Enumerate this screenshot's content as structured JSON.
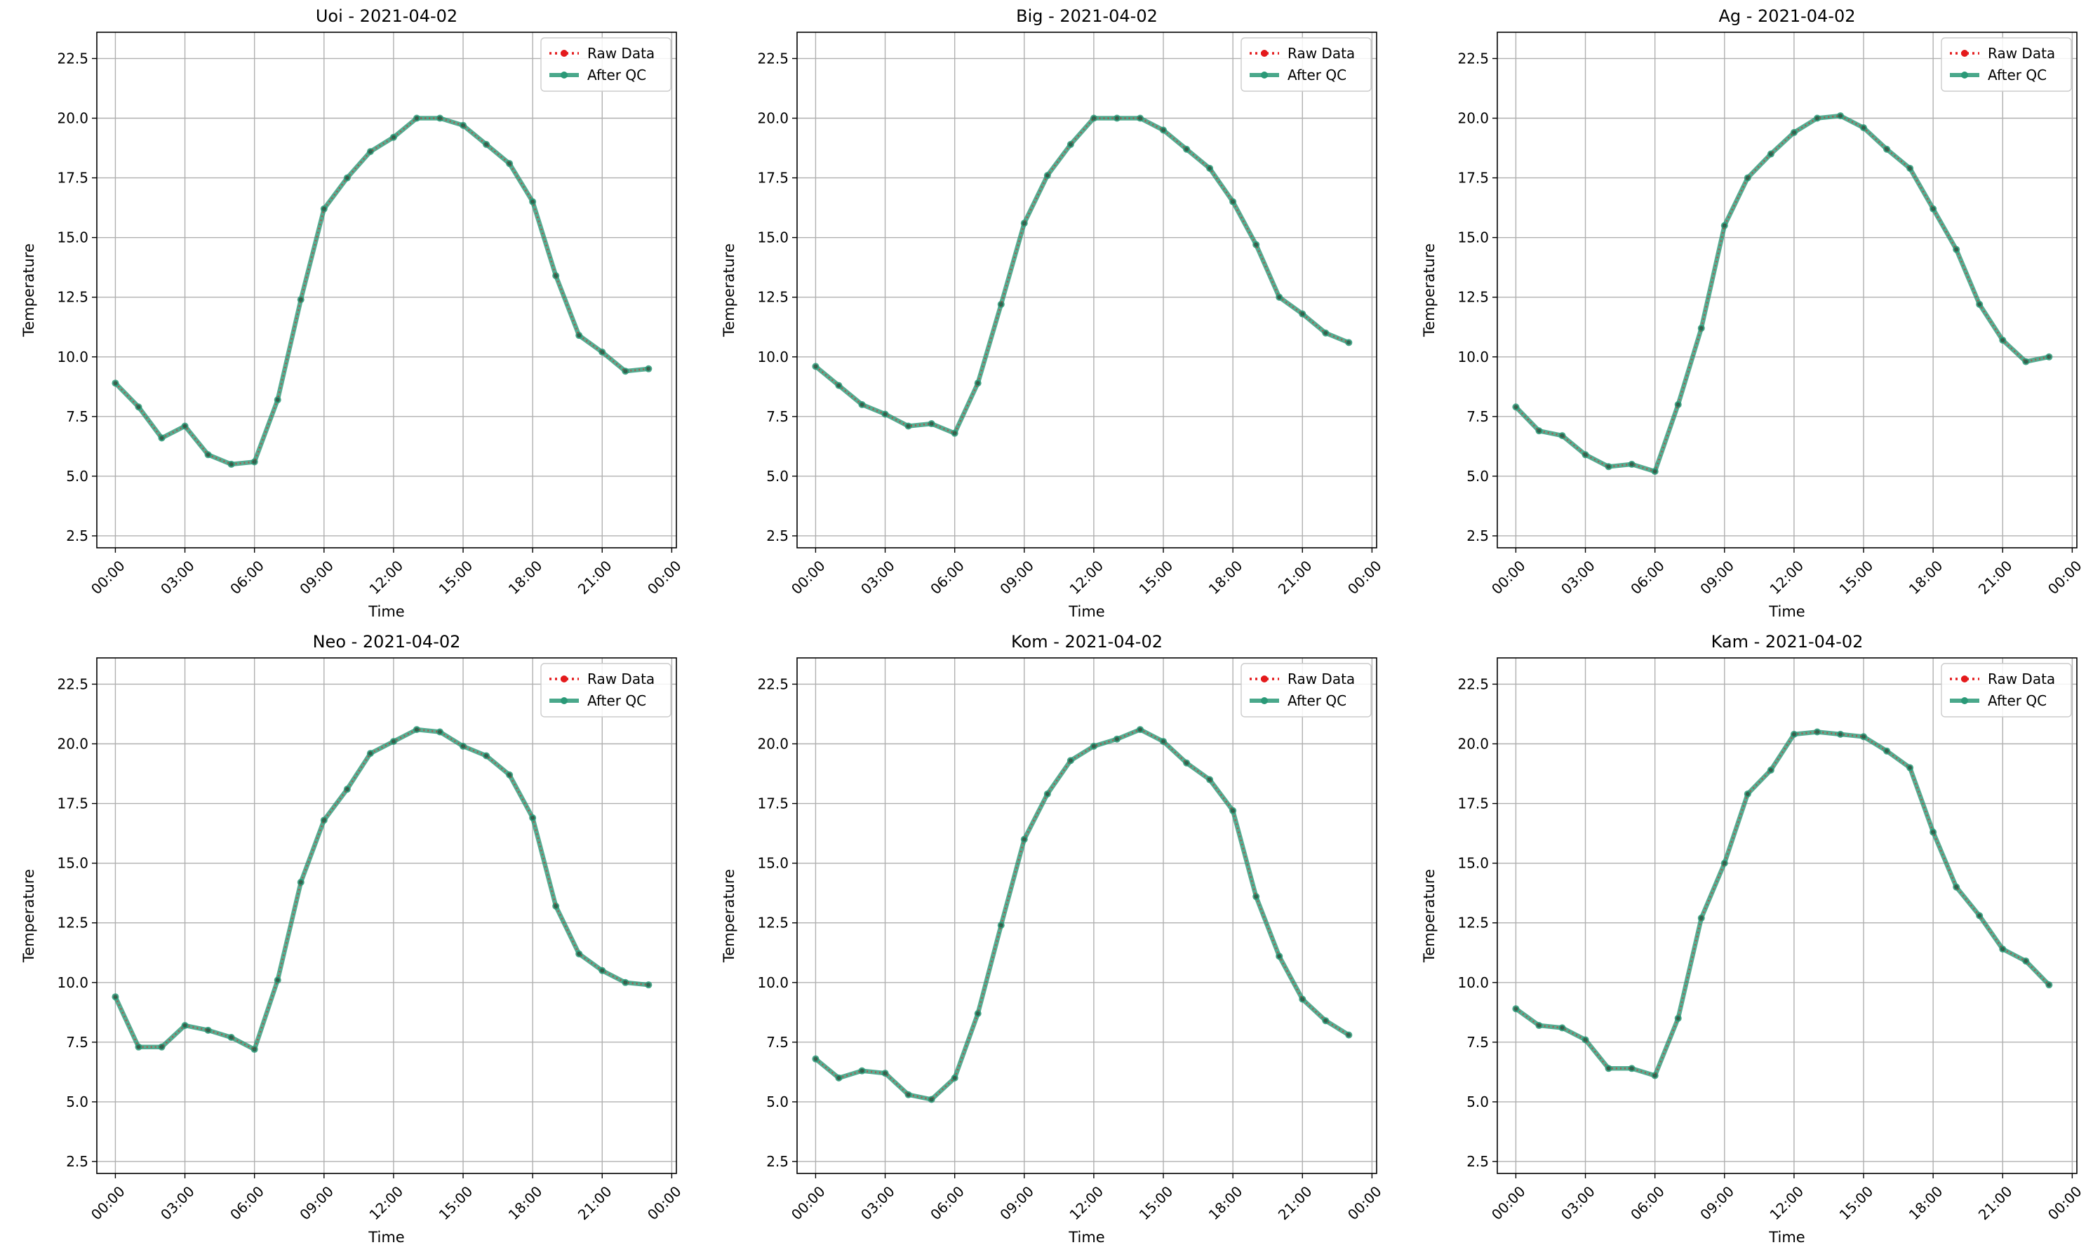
{
  "legend": {
    "raw_label": "Raw Data",
    "qc_label": "After QC"
  },
  "colors": {
    "raw": "#e41a1c",
    "qc": "#2a9977",
    "grid": "#b0b0b0"
  },
  "chart_data": [
    {
      "type": "line",
      "title": "Uoi - 2021-04-02",
      "xlabel": "Time",
      "ylabel": "Temperature",
      "x_ticks": [
        "00:00",
        "03:00",
        "06:00",
        "09:00",
        "12:00",
        "15:00",
        "18:00",
        "21:00",
        "00:00"
      ],
      "y_ticks": [
        "2.5",
        "5.0",
        "7.5",
        "10.0",
        "12.5",
        "15.0",
        "17.5",
        "20.0",
        "22.5"
      ],
      "ylim": [
        2.0,
        23.6
      ],
      "xlim_hours": [
        -0.8,
        24.2
      ],
      "grid": true,
      "legend_position": "top-right",
      "x_hours": [
        0,
        1,
        2,
        3,
        4,
        5,
        6,
        7,
        8,
        9,
        10,
        11,
        12,
        13,
        14,
        15,
        16,
        17,
        18,
        19,
        20,
        21,
        22,
        23
      ],
      "series": [
        {
          "name": "Raw Data",
          "values": [
            8.9,
            7.9,
            6.6,
            7.1,
            5.9,
            5.5,
            5.6,
            8.2,
            12.4,
            16.2,
            17.5,
            18.6,
            19.2,
            20.0,
            20.0,
            19.7,
            18.9,
            18.1,
            16.5,
            13.4,
            10.9,
            10.2,
            9.4,
            9.5
          ]
        },
        {
          "name": "After QC",
          "values": [
            8.9,
            7.9,
            6.6,
            7.1,
            5.9,
            5.5,
            5.6,
            8.2,
            12.4,
            16.2,
            17.5,
            18.6,
            19.2,
            20.0,
            20.0,
            19.7,
            18.9,
            18.1,
            16.5,
            13.4,
            10.9,
            10.2,
            9.4,
            9.5
          ]
        }
      ]
    },
    {
      "type": "line",
      "title": "Big - 2021-04-02",
      "xlabel": "Time",
      "ylabel": "Temperature",
      "x_ticks": [
        "00:00",
        "03:00",
        "06:00",
        "09:00",
        "12:00",
        "15:00",
        "18:00",
        "21:00",
        "00:00"
      ],
      "y_ticks": [
        "2.5",
        "5.0",
        "7.5",
        "10.0",
        "12.5",
        "15.0",
        "17.5",
        "20.0",
        "22.5"
      ],
      "ylim": [
        2.0,
        23.6
      ],
      "xlim_hours": [
        -0.8,
        24.2
      ],
      "grid": true,
      "legend_position": "top-right",
      "x_hours": [
        0,
        1,
        2,
        3,
        4,
        5,
        6,
        7,
        8,
        9,
        10,
        11,
        12,
        13,
        14,
        15,
        16,
        17,
        18,
        19,
        20,
        21,
        22,
        23
      ],
      "series": [
        {
          "name": "Raw Data",
          "values": [
            9.6,
            8.8,
            8.0,
            7.6,
            7.1,
            7.2,
            6.8,
            8.9,
            12.2,
            15.6,
            17.6,
            18.9,
            20.0,
            20.0,
            20.0,
            19.5,
            18.7,
            17.9,
            16.5,
            14.7,
            12.5,
            11.8,
            11.0,
            10.6
          ]
        },
        {
          "name": "After QC",
          "values": [
            9.6,
            8.8,
            8.0,
            7.6,
            7.1,
            7.2,
            6.8,
            8.9,
            12.2,
            15.6,
            17.6,
            18.9,
            20.0,
            20.0,
            20.0,
            19.5,
            18.7,
            17.9,
            16.5,
            14.7,
            12.5,
            11.8,
            11.0,
            10.6
          ]
        }
      ]
    },
    {
      "type": "line",
      "title": "Ag - 2021-04-02",
      "xlabel": "Time",
      "ylabel": "Temperature",
      "x_ticks": [
        "00:00",
        "03:00",
        "06:00",
        "09:00",
        "12:00",
        "15:00",
        "18:00",
        "21:00",
        "00:00"
      ],
      "y_ticks": [
        "2.5",
        "5.0",
        "7.5",
        "10.0",
        "12.5",
        "15.0",
        "17.5",
        "20.0",
        "22.5"
      ],
      "ylim": [
        2.0,
        23.6
      ],
      "xlim_hours": [
        -0.8,
        24.2
      ],
      "grid": true,
      "legend_position": "top-right",
      "x_hours": [
        0,
        1,
        2,
        3,
        4,
        5,
        6,
        7,
        8,
        9,
        10,
        11,
        12,
        13,
        14,
        15,
        16,
        17,
        18,
        19,
        20,
        21,
        22,
        23
      ],
      "series": [
        {
          "name": "Raw Data",
          "values": [
            7.9,
            6.9,
            6.7,
            5.9,
            5.4,
            5.5,
            5.2,
            8.0,
            11.2,
            15.5,
            17.5,
            18.5,
            19.4,
            20.0,
            20.1,
            19.6,
            18.7,
            17.9,
            16.2,
            14.5,
            12.2,
            10.7,
            9.8,
            10.0
          ]
        },
        {
          "name": "After QC",
          "values": [
            7.9,
            6.9,
            6.7,
            5.9,
            5.4,
            5.5,
            5.2,
            8.0,
            11.2,
            15.5,
            17.5,
            18.5,
            19.4,
            20.0,
            20.1,
            19.6,
            18.7,
            17.9,
            16.2,
            14.5,
            12.2,
            10.7,
            9.8,
            10.0
          ]
        }
      ]
    },
    {
      "type": "line",
      "title": "Neo - 2021-04-02",
      "xlabel": "Time",
      "ylabel": "Temperature",
      "x_ticks": [
        "00:00",
        "03:00",
        "06:00",
        "09:00",
        "12:00",
        "15:00",
        "18:00",
        "21:00",
        "00:00"
      ],
      "y_ticks": [
        "2.5",
        "5.0",
        "7.5",
        "10.0",
        "12.5",
        "15.0",
        "17.5",
        "20.0",
        "22.5"
      ],
      "ylim": [
        2.0,
        23.6
      ],
      "xlim_hours": [
        -0.8,
        24.2
      ],
      "grid": true,
      "legend_position": "top-right",
      "x_hours": [
        0,
        1,
        2,
        3,
        4,
        5,
        6,
        7,
        8,
        9,
        10,
        11,
        12,
        13,
        14,
        15,
        16,
        17,
        18,
        19,
        20,
        21,
        22,
        23
      ],
      "series": [
        {
          "name": "Raw Data",
          "values": [
            9.4,
            7.3,
            7.3,
            8.2,
            8.0,
            7.7,
            7.2,
            10.1,
            14.2,
            16.8,
            18.1,
            19.6,
            20.1,
            20.6,
            20.5,
            19.9,
            19.5,
            18.7,
            16.9,
            13.2,
            11.2,
            10.5,
            10.0,
            9.9
          ]
        },
        {
          "name": "After QC",
          "values": [
            9.4,
            7.3,
            7.3,
            8.2,
            8.0,
            7.7,
            7.2,
            10.1,
            14.2,
            16.8,
            18.1,
            19.6,
            20.1,
            20.6,
            20.5,
            19.9,
            19.5,
            18.7,
            16.9,
            13.2,
            11.2,
            10.5,
            10.0,
            9.9
          ]
        }
      ]
    },
    {
      "type": "line",
      "title": "Kom - 2021-04-02",
      "xlabel": "Time",
      "ylabel": "Temperature",
      "x_ticks": [
        "00:00",
        "03:00",
        "06:00",
        "09:00",
        "12:00",
        "15:00",
        "18:00",
        "21:00",
        "00:00"
      ],
      "y_ticks": [
        "2.5",
        "5.0",
        "7.5",
        "10.0",
        "12.5",
        "15.0",
        "17.5",
        "20.0",
        "22.5"
      ],
      "ylim": [
        2.0,
        23.6
      ],
      "xlim_hours": [
        -0.8,
        24.2
      ],
      "grid": true,
      "legend_position": "top-right",
      "x_hours": [
        0,
        1,
        2,
        3,
        4,
        5,
        6,
        7,
        8,
        9,
        10,
        11,
        12,
        13,
        14,
        15,
        16,
        17,
        18,
        19,
        20,
        21,
        22,
        23
      ],
      "series": [
        {
          "name": "Raw Data",
          "values": [
            6.8,
            6.0,
            6.3,
            6.2,
            5.3,
            5.1,
            6.0,
            8.7,
            12.4,
            16.0,
            17.9,
            19.3,
            19.9,
            20.2,
            20.6,
            20.1,
            19.2,
            18.5,
            17.2,
            13.6,
            11.1,
            9.3,
            8.4,
            7.8
          ]
        },
        {
          "name": "After QC",
          "values": [
            6.8,
            6.0,
            6.3,
            6.2,
            5.3,
            5.1,
            6.0,
            8.7,
            12.4,
            16.0,
            17.9,
            19.3,
            19.9,
            20.2,
            20.6,
            20.1,
            19.2,
            18.5,
            17.2,
            13.6,
            11.1,
            9.3,
            8.4,
            7.8
          ]
        }
      ]
    },
    {
      "type": "line",
      "title": "Kam - 2021-04-02",
      "xlabel": "Time",
      "ylabel": "Temperature",
      "x_ticks": [
        "00:00",
        "03:00",
        "06:00",
        "09:00",
        "12:00",
        "15:00",
        "18:00",
        "21:00",
        "00:00"
      ],
      "y_ticks": [
        "2.5",
        "5.0",
        "7.5",
        "10.0",
        "12.5",
        "15.0",
        "17.5",
        "20.0",
        "22.5"
      ],
      "ylim": [
        2.0,
        23.6
      ],
      "xlim_hours": [
        -0.8,
        24.2
      ],
      "grid": true,
      "legend_position": "top-right",
      "x_hours": [
        0,
        1,
        2,
        3,
        4,
        5,
        6,
        7,
        8,
        9,
        10,
        11,
        12,
        13,
        14,
        15,
        16,
        17,
        18,
        19,
        20,
        21,
        22,
        23
      ],
      "series": [
        {
          "name": "Raw Data",
          "values": [
            8.9,
            8.2,
            8.1,
            7.6,
            6.4,
            6.4,
            6.1,
            8.5,
            12.7,
            15.0,
            17.9,
            18.9,
            20.4,
            20.5,
            20.4,
            20.3,
            19.7,
            19.0,
            16.3,
            14.0,
            12.8,
            11.4,
            10.9,
            9.9
          ]
        },
        {
          "name": "After QC",
          "values": [
            8.9,
            8.2,
            8.1,
            7.6,
            6.4,
            6.4,
            6.1,
            8.5,
            12.7,
            15.0,
            17.9,
            18.9,
            20.4,
            20.5,
            20.4,
            20.3,
            19.7,
            19.0,
            16.3,
            14.0,
            12.8,
            11.4,
            10.9,
            9.9
          ]
        }
      ]
    }
  ]
}
